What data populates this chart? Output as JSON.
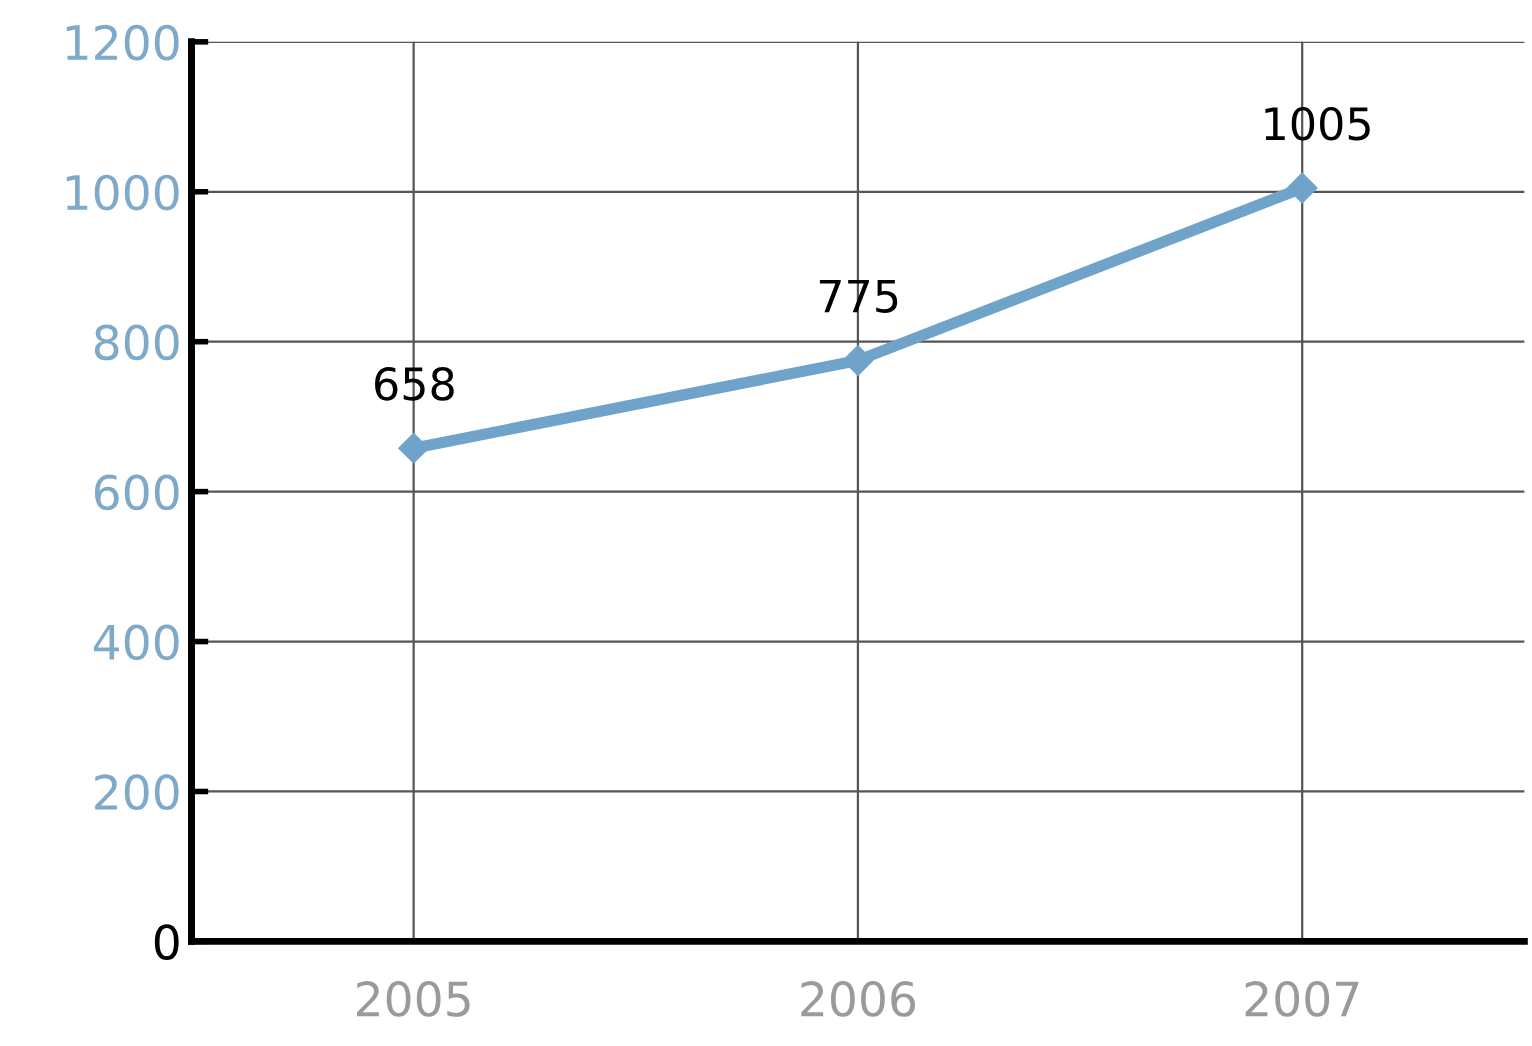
{
  "chart_data": {
    "type": "line",
    "categories": [
      "2005",
      "2006",
      "2007"
    ],
    "series": [
      {
        "color": "#6fa3c9",
        "values": [
          658,
          775,
          1005
        ]
      }
    ],
    "ylim": [
      0,
      1200
    ],
    "yticks": [
      0,
      200,
      400,
      600,
      800,
      1000,
      1200
    ],
    "grid": true,
    "marker": "diamond",
    "line_style": "solid",
    "data_labels": true
  }
}
